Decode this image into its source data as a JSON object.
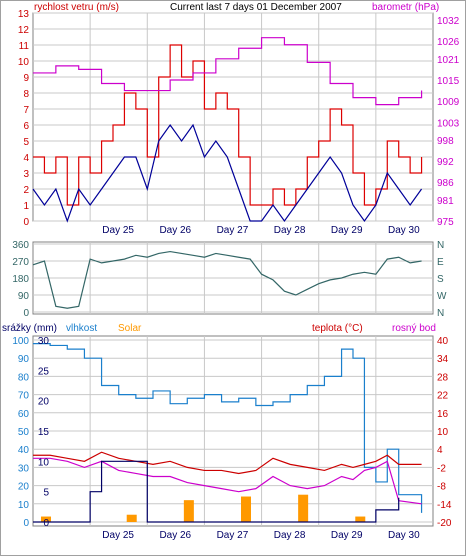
{
  "header": {
    "left_label": "rychlost vetru (m/s)",
    "title": "Current last 7 days 01 December 2007",
    "right_label": "barometr (hPa)"
  },
  "bottom_header": {
    "rain_label": "srážky (mm)",
    "humidity_label": "vlhkost",
    "solar_label": "Solar",
    "temp_label": "teplota (°C)",
    "dew_label": "rosný bod"
  },
  "colors": {
    "wind": "#000099",
    "gust": "#dd0000",
    "pressure": "#cc00cc",
    "direction": "#336666",
    "humidity": "#1a7fcc",
    "solar": "#ff9900",
    "temperature": "#cc0000",
    "dew": "#cc00cc",
    "rain": "#000066",
    "grid": "#c8c8c8"
  },
  "chart_data": [
    {
      "type": "line",
      "name": "wind-and-pressure",
      "x_tick_labels": [
        "Day 25",
        "Day 26",
        "Day 27",
        "Day 28",
        "Day 29",
        "Day 30"
      ],
      "y_left_ticks": [
        0,
        1,
        2,
        3,
        4,
        5,
        6,
        7,
        8,
        9,
        10,
        11,
        12,
        13
      ],
      "ylim_left": [
        0,
        13
      ],
      "y_right_ticks": [
        975,
        981,
        986,
        992,
        998,
        1003,
        1009,
        1015,
        1021,
        1026,
        1032
      ],
      "ylim_right": [
        975,
        1034
      ],
      "series": [
        {
          "name": "rychlost vetru (m/s)",
          "axis": "left",
          "x": [
            0,
            0.2,
            0.4,
            0.6,
            0.8,
            1.0,
            1.2,
            1.4,
            1.6,
            1.8,
            2.0,
            2.2,
            2.4,
            2.6,
            2.8,
            3.0,
            3.2,
            3.4,
            3.6,
            3.8,
            4.0,
            4.2,
            4.4,
            4.6,
            4.8,
            5.0,
            5.2,
            5.4,
            5.6,
            5.8,
            6.0,
            6.2,
            6.4,
            6.6,
            6.8
          ],
          "values": [
            2,
            1,
            2,
            0,
            2,
            1,
            2,
            3,
            4,
            4,
            2,
            5,
            6,
            5,
            6,
            4,
            5,
            4,
            2,
            0,
            0,
            1,
            0,
            1,
            2,
            3,
            4,
            3,
            1,
            0,
            1,
            3,
            2,
            1,
            2
          ]
        },
        {
          "name": "gust",
          "axis": "left",
          "x": [
            0,
            0.2,
            0.4,
            0.6,
            0.8,
            1.0,
            1.2,
            1.4,
            1.6,
            1.8,
            2.0,
            2.2,
            2.4,
            2.6,
            2.8,
            3.0,
            3.2,
            3.4,
            3.6,
            3.8,
            4.0,
            4.2,
            4.4,
            4.6,
            4.8,
            5.0,
            5.2,
            5.4,
            5.6,
            5.8,
            6.0,
            6.2,
            6.4,
            6.6,
            6.8
          ],
          "values": [
            4,
            3,
            4,
            1,
            4,
            3,
            5,
            6,
            8,
            7,
            4,
            9,
            11,
            9,
            10,
            7,
            8,
            7,
            4,
            1,
            1,
            2,
            1,
            2,
            4,
            5,
            7,
            6,
            3,
            1,
            2,
            5,
            4,
            3,
            4
          ]
        },
        {
          "name": "barometr (hPa)",
          "axis": "right",
          "x": [
            0,
            0.4,
            0.8,
            1.2,
            1.6,
            2.0,
            2.4,
            2.8,
            3.2,
            3.6,
            4.0,
            4.4,
            4.8,
            5.2,
            5.6,
            6.0,
            6.4,
            6.8
          ],
          "values": [
            1017,
            1019,
            1018,
            1014,
            1012,
            1012,
            1015,
            1017,
            1021,
            1024,
            1027,
            1025,
            1020,
            1014,
            1010,
            1008,
            1010,
            1012
          ]
        }
      ]
    },
    {
      "type": "line",
      "name": "wind-direction",
      "x_tick_labels": [],
      "y_left_ticks": [
        0,
        90,
        180,
        270,
        360
      ],
      "ylim_left": [
        0,
        360
      ],
      "y_right_ticks": [
        "N",
        "E",
        "S",
        "W",
        "N"
      ],
      "series": [
        {
          "name": "direction",
          "x": [
            0,
            0.2,
            0.4,
            0.6,
            0.8,
            1.0,
            1.2,
            1.4,
            1.6,
            1.8,
            2.0,
            2.2,
            2.4,
            2.6,
            2.8,
            3.0,
            3.2,
            3.4,
            3.6,
            3.8,
            4.0,
            4.2,
            4.4,
            4.6,
            4.8,
            5.0,
            5.2,
            5.4,
            5.6,
            5.8,
            6.0,
            6.2,
            6.4,
            6.6,
            6.8
          ],
          "values": [
            250,
            270,
            30,
            20,
            30,
            280,
            260,
            270,
            280,
            300,
            290,
            310,
            320,
            310,
            300,
            290,
            310,
            300,
            290,
            280,
            200,
            170,
            110,
            90,
            120,
            150,
            170,
            180,
            200,
            210,
            200,
            280,
            290,
            260,
            270
          ]
        }
      ]
    },
    {
      "type": "line",
      "name": "rain-humidity-solar-temperature",
      "x_tick_labels": [
        "Day 25",
        "Day 26",
        "Day 27",
        "Day 28",
        "Day 29",
        "Day 30"
      ],
      "y_left_ticks_rain": [
        0,
        5,
        10,
        15,
        20,
        25,
        30
      ],
      "y_left_ticks_humidity": [
        0,
        10,
        20,
        30,
        40,
        50,
        60,
        70,
        80,
        90,
        100
      ],
      "y_right_ticks": [
        40,
        34,
        28,
        22,
        16,
        10,
        4,
        -2,
        -8,
        -14,
        -20
      ],
      "ylim_humidity": [
        0,
        100
      ],
      "ylim_temp": [
        -20,
        40
      ],
      "series": [
        {
          "name": "vlhkost",
          "axis": "humidity",
          "x": [
            0,
            0.3,
            0.6,
            0.9,
            1.2,
            1.5,
            1.8,
            2.1,
            2.4,
            2.7,
            3.0,
            3.3,
            3.6,
            3.9,
            4.2,
            4.5,
            4.8,
            5.1,
            5.4,
            5.6,
            5.8,
            6.0,
            6.2,
            6.4,
            6.8
          ],
          "values": [
            98,
            97,
            95,
            90,
            75,
            70,
            68,
            72,
            65,
            68,
            70,
            66,
            68,
            64,
            66,
            70,
            75,
            80,
            95,
            90,
            30,
            22,
            40,
            15,
            5
          ]
        },
        {
          "name": "teplota (°C)",
          "axis": "temp",
          "x": [
            0,
            0.3,
            0.6,
            0.9,
            1.2,
            1.5,
            1.8,
            2.1,
            2.4,
            2.7,
            3.0,
            3.3,
            3.6,
            3.9,
            4.2,
            4.5,
            4.8,
            5.1,
            5.4,
            5.6,
            5.8,
            6.0,
            6.2,
            6.4,
            6.8
          ],
          "values": [
            2,
            2,
            1,
            0,
            3,
            1,
            0,
            -1,
            0,
            -2,
            -3,
            -3,
            -4,
            -3,
            1,
            -1,
            -2,
            -3,
            -1,
            -2,
            -1,
            0,
            2,
            -1,
            -1
          ]
        },
        {
          "name": "rosný bod",
          "axis": "temp",
          "x": [
            0,
            0.3,
            0.6,
            0.9,
            1.2,
            1.5,
            1.8,
            2.1,
            2.4,
            2.7,
            3.0,
            3.3,
            3.6,
            3.9,
            4.2,
            4.5,
            4.8,
            5.1,
            5.4,
            5.6,
            5.8,
            6.0,
            6.2,
            6.4,
            6.8
          ],
          "values": [
            1,
            1,
            0,
            -2,
            0,
            -3,
            -4,
            -5,
            -5,
            -7,
            -8,
            -9,
            -10,
            -9,
            -5,
            -8,
            -9,
            -8,
            -5,
            -6,
            -3,
            -2,
            0,
            -13,
            -14
          ]
        },
        {
          "name": "Solar",
          "axis": "humidity",
          "x": [
            0,
            1.5,
            2.5,
            3.5,
            4.5,
            5.5
          ],
          "values": [
            3,
            4,
            12,
            14,
            15,
            3
          ]
        },
        {
          "name": "srážky (mm)",
          "axis": "rain",
          "x": [
            0,
            0.8,
            1.0,
            1.2,
            2.0,
            3.0,
            4.0,
            4.5,
            5.0,
            5.5,
            5.8,
            6.0,
            6.4
          ],
          "values": [
            0,
            0,
            5,
            10,
            0,
            0,
            0,
            0,
            0,
            0,
            0,
            2,
            4
          ]
        }
      ]
    }
  ]
}
